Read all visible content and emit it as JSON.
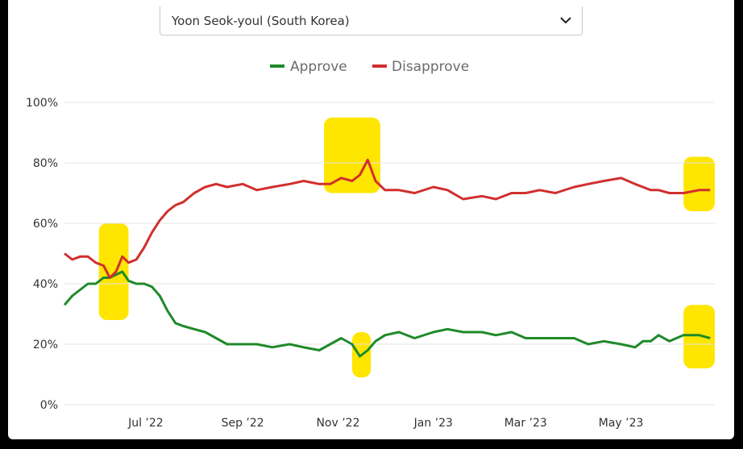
{
  "selector": {
    "value": "Yoon Seok-youl (South Korea)",
    "icon": "chevron-down-icon"
  },
  "colors": {
    "approve": "#1f8a2a",
    "disapprove": "#d12f2f",
    "highlight": "#ffe600",
    "grid": "#e3e3e3"
  },
  "chart_data": {
    "type": "line",
    "ylim": [
      0,
      100
    ],
    "ytick_labels": [
      "0%",
      "20%",
      "40%",
      "60%",
      "80%",
      "100%"
    ],
    "yticks": [
      0,
      20,
      40,
      60,
      80,
      100
    ],
    "xtick_labels": [
      "Jul ’22",
      "Sep ’22",
      "Nov ’22",
      "Jan ’23",
      "Mar ’23",
      "May ’23"
    ],
    "xticks": [
      "2022-07-01",
      "2022-09-01",
      "2022-11-01",
      "2023-01-01",
      "2023-03-01",
      "2023-05-01"
    ],
    "xlim": [
      "2022-05-10",
      "2023-06-30"
    ],
    "legend_position": "top-center",
    "grid": true,
    "series": [
      {
        "name": "Approve",
        "x": [
          "2022-05-10",
          "2022-05-15",
          "2022-05-20",
          "2022-05-25",
          "2022-05-30",
          "2022-06-04",
          "2022-06-08",
          "2022-06-12",
          "2022-06-16",
          "2022-06-20",
          "2022-06-25",
          "2022-06-30",
          "2022-07-05",
          "2022-07-10",
          "2022-07-15",
          "2022-07-20",
          "2022-07-25",
          "2022-08-01",
          "2022-08-08",
          "2022-08-15",
          "2022-08-22",
          "2022-09-01",
          "2022-09-10",
          "2022-09-20",
          "2022-10-01",
          "2022-10-10",
          "2022-10-20",
          "2022-10-27",
          "2022-11-03",
          "2022-11-10",
          "2022-11-15",
          "2022-11-20",
          "2022-11-25",
          "2022-12-01",
          "2022-12-10",
          "2022-12-20",
          "2023-01-01",
          "2023-01-10",
          "2023-01-20",
          "2023-02-01",
          "2023-02-10",
          "2023-02-20",
          "2023-03-01",
          "2023-03-10",
          "2023-03-20",
          "2023-04-01",
          "2023-04-10",
          "2023-04-20",
          "2023-05-01",
          "2023-05-10",
          "2023-05-15",
          "2023-05-20",
          "2023-05-25",
          "2023-06-01",
          "2023-06-10",
          "2023-06-20",
          "2023-06-27"
        ],
        "values": [
          33,
          36,
          38,
          40,
          40,
          42,
          42,
          43,
          44,
          41,
          40,
          40,
          39,
          36,
          31,
          27,
          26,
          25,
          24,
          22,
          20,
          20,
          20,
          19,
          20,
          19,
          18,
          20,
          22,
          20,
          16,
          18,
          21,
          23,
          24,
          22,
          24,
          25,
          24,
          24,
          23,
          24,
          22,
          22,
          22,
          22,
          20,
          21,
          20,
          19,
          21,
          21,
          23,
          21,
          23,
          23,
          22
        ]
      },
      {
        "name": "Disapprove",
        "x": [
          "2022-05-10",
          "2022-05-15",
          "2022-05-20",
          "2022-05-25",
          "2022-05-30",
          "2022-06-04",
          "2022-06-08",
          "2022-06-12",
          "2022-06-16",
          "2022-06-20",
          "2022-06-25",
          "2022-06-30",
          "2022-07-05",
          "2022-07-10",
          "2022-07-15",
          "2022-07-20",
          "2022-07-25",
          "2022-08-01",
          "2022-08-08",
          "2022-08-15",
          "2022-08-22",
          "2022-09-01",
          "2022-09-10",
          "2022-09-20",
          "2022-10-01",
          "2022-10-10",
          "2022-10-20",
          "2022-10-27",
          "2022-11-03",
          "2022-11-10",
          "2022-11-15",
          "2022-11-20",
          "2022-11-25",
          "2022-12-01",
          "2022-12-10",
          "2022-12-20",
          "2023-01-01",
          "2023-01-10",
          "2023-01-20",
          "2023-02-01",
          "2023-02-10",
          "2023-02-20",
          "2023-03-01",
          "2023-03-10",
          "2023-03-20",
          "2023-04-01",
          "2023-04-10",
          "2023-04-20",
          "2023-05-01",
          "2023-05-10",
          "2023-05-15",
          "2023-05-20",
          "2023-05-25",
          "2023-06-01",
          "2023-06-10",
          "2023-06-20",
          "2023-06-27"
        ],
        "values": [
          50,
          48,
          49,
          49,
          47,
          46,
          42,
          44,
          49,
          47,
          48,
          52,
          57,
          61,
          64,
          66,
          67,
          70,
          72,
          73,
          72,
          73,
          71,
          72,
          73,
          74,
          73,
          73,
          75,
          74,
          76,
          81,
          74,
          71,
          71,
          70,
          72,
          71,
          68,
          69,
          68,
          70,
          70,
          71,
          70,
          72,
          73,
          74,
          75,
          73,
          72,
          71,
          71,
          70,
          70,
          71,
          71
        ]
      }
    ]
  }
}
